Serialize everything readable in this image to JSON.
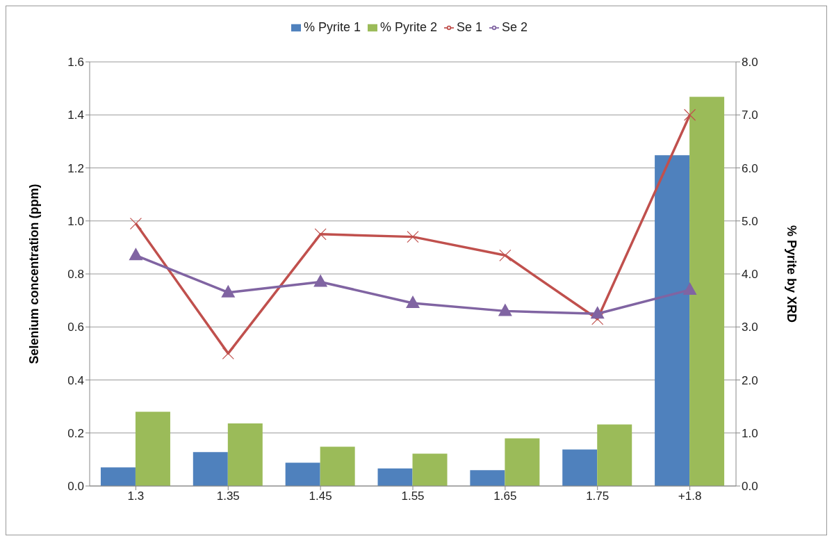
{
  "chart_data": {
    "type": "bar",
    "ylabel": "Selenium concentration (ppm)",
    "y2label": "% Pyrite by XRD",
    "categories": [
      "1.3",
      "1.35",
      "1.45",
      "1.55",
      "1.65",
      "1.75",
      "+1.8"
    ],
    "series": [
      {
        "name": "% Pyrite 1",
        "axis": "y2",
        "color": "#4f81bd",
        "values": [
          0.35,
          0.64,
          0.44,
          0.33,
          0.3,
          0.69,
          6.24
        ]
      },
      {
        "name": "% Pyrite 2",
        "axis": "y2",
        "color": "#9bbb59",
        "values": [
          1.4,
          1.18,
          0.74,
          0.61,
          0.9,
          1.16,
          7.34
        ]
      },
      {
        "name": "Se 1",
        "type": "line",
        "marker": "cross",
        "color": "#c0504d",
        "values": [
          0.99,
          0.5,
          0.95,
          0.94,
          0.87,
          0.63,
          1.4
        ]
      },
      {
        "name": "Se 2",
        "type": "line",
        "marker": "triangle",
        "color": "#8064a2",
        "values": [
          0.87,
          0.73,
          0.77,
          0.69,
          0.66,
          0.65,
          0.74
        ]
      }
    ],
    "ylim": [
      0,
      1.6
    ],
    "yticks": [
      {
        "value": 0,
        "label": "0.0"
      },
      0.2,
      0.4,
      0.6,
      0.8,
      {
        "value": 1,
        "label": "1.0"
      },
      1.2,
      1.4,
      1.6
    ],
    "y2lim": [
      0,
      8
    ],
    "y2ticks": [
      {
        "value": 0,
        "label": "0.0"
      },
      {
        "value": 1,
        "label": "1.0"
      },
      {
        "value": 2,
        "label": "2.0"
      },
      {
        "value": 3,
        "label": "3.0"
      },
      {
        "value": 4,
        "label": "4.0"
      },
      {
        "value": 5,
        "label": "5.0"
      },
      {
        "value": 6,
        "label": "6.0"
      },
      {
        "value": 7,
        "label": "7.0"
      },
      {
        "value": 8,
        "label": "8.0"
      }
    ],
    "grid": "y",
    "legend": "top"
  }
}
